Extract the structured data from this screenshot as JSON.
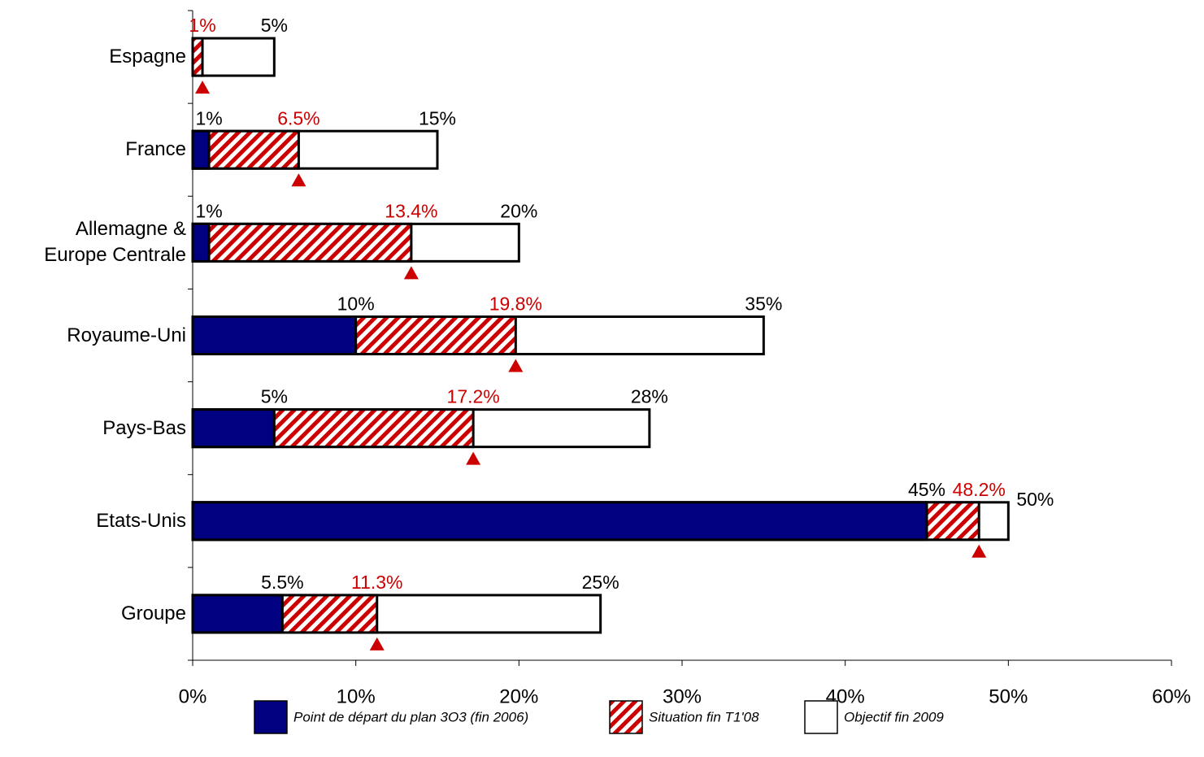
{
  "chart_data": {
    "type": "overlaid-bar",
    "orientation": "horizontal",
    "categories": [
      "Espagne",
      "France",
      "Allemagne & Europe Centrale",
      "Royaume-Uni",
      "Pays-Bas",
      "Etats-Unis",
      "Groupe"
    ],
    "series": [
      {
        "name": "Point de départ du plan 3O3 (fin 2006)",
        "color": "#000080",
        "fill": "solid",
        "label_color": "#000000",
        "values": [
          null,
          1,
          1,
          10,
          5,
          45,
          5.5
        ],
        "value_labels": [
          null,
          "1%",
          "1%",
          "10%",
          "5%",
          "45%",
          "5.5%"
        ]
      },
      {
        "name": "Situation fin T1'08",
        "color": "#cc0000",
        "fill": "hatch",
        "label_color": "#cc0000",
        "marker": "triangle",
        "values": [
          0.6,
          6.5,
          13.4,
          19.8,
          17.2,
          48.2,
          11.3
        ],
        "value_labels": [
          "1%",
          "6.5%",
          "13.4%",
          "19.8%",
          "17.2%",
          "48.2%",
          "11.3%"
        ]
      },
      {
        "name": "Objectif fin 2009",
        "color": "#ffffff",
        "fill": "solid",
        "label_color": "#000000",
        "values": [
          5,
          15,
          20,
          35,
          28,
          50,
          25
        ],
        "value_labels": [
          "5%",
          "15%",
          "20%",
          "35%",
          "28%",
          "50%",
          "25%"
        ]
      }
    ],
    "xlim": [
      0,
      60
    ],
    "xticks": [
      {
        "value": 0,
        "label": "0%"
      },
      {
        "value": 10,
        "label": "10%"
      },
      {
        "value": 20,
        "label": "20%"
      },
      {
        "value": 30,
        "label": "30%"
      },
      {
        "value": 40,
        "label": "40%"
      },
      {
        "value": 50,
        "label": "50%"
      },
      {
        "value": 60,
        "label": "60%"
      }
    ],
    "legend": "bottom"
  }
}
